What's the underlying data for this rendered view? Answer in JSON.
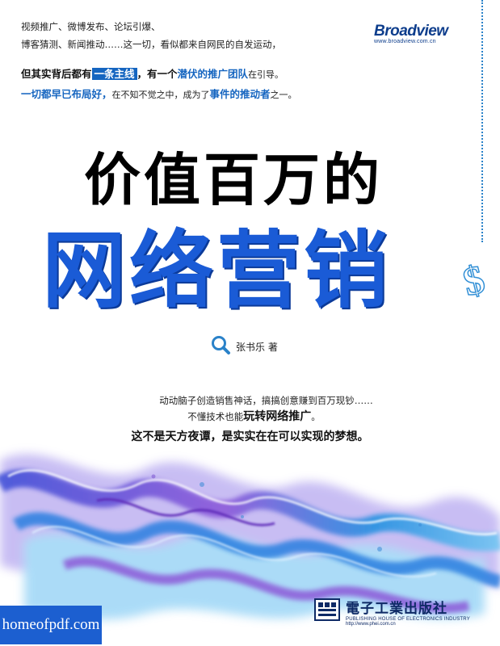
{
  "intro": {
    "line1": "视频推广、微博发布、论坛引爆、",
    "line2": "博客猜测、新闻推动……这一切，看似都来自网民的自发运动，"
  },
  "publisher_logo": {
    "brand": "Broadview",
    "url": "www.broadview.com.cn"
  },
  "hook": {
    "l1_a": "但其实背后都有",
    "l1_highlight": "一条主线",
    "l1_b": "，有一个",
    "l1_c": "潜伏的推广团队",
    "l1_d": "在引导。",
    "l2_a": "一切都早已布局好，",
    "l2_b": "在不知不觉之中，成为了",
    "l2_c": "事件的推动者",
    "l2_d": "之一。"
  },
  "title": {
    "line1": "价值百万的",
    "line2": "网络营销"
  },
  "author": {
    "name": "张书乐 著"
  },
  "blurb": {
    "line1": "动动脑子创造销售神话，搞搞创意赚到百万现钞……",
    "line2_a": "不懂技术也能",
    "line2_b": "玩转网络推广",
    "line2_c": "。",
    "line3": "这不是天方夜谭，是实实在在可以实现的梦想。"
  },
  "watermark": {
    "text": "homeofpdf.com"
  },
  "press": {
    "name_cn": "電子工業出版社",
    "name_en": "PUBLISHING HOUSE OF ELECTRONICS INDUSTRY",
    "url": "http://www.phei.com.cn"
  },
  "colors": {
    "title_blue": "#1a5bd6",
    "accent_blue": "#1565c0",
    "watermark_bg": "#1c5fd0",
    "press_navy": "#0e2a66"
  }
}
